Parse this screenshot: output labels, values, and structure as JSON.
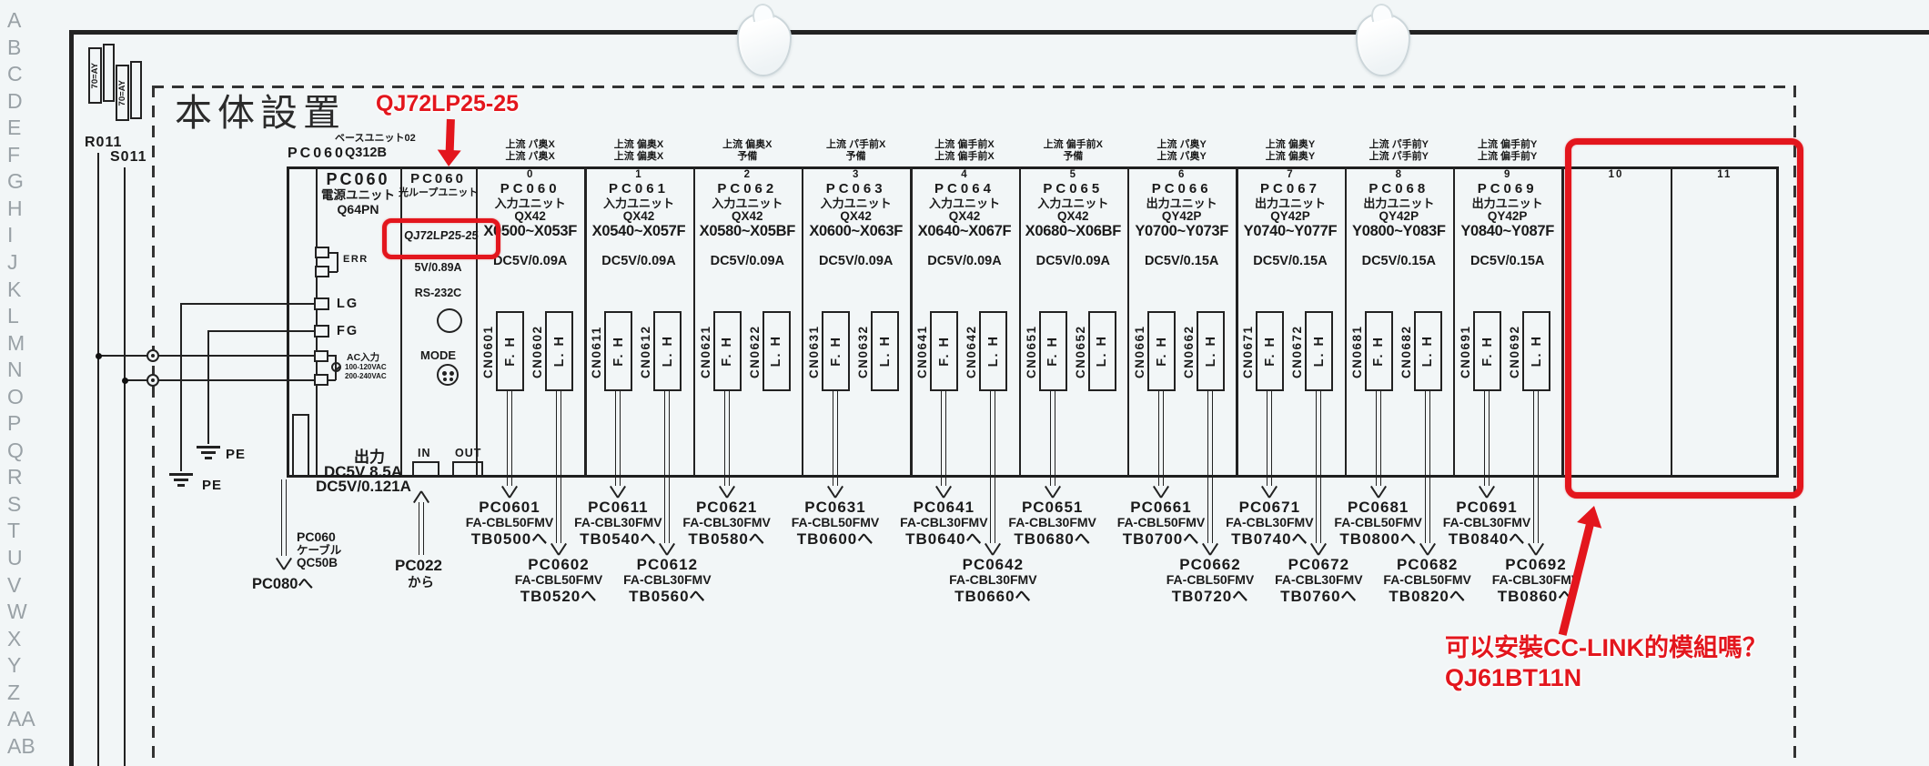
{
  "page": {
    "title": "本体設置",
    "row_letters": [
      "A",
      "B",
      "C",
      "D",
      "E",
      "F",
      "G",
      "H",
      "I",
      "J",
      "K",
      "L",
      "M",
      "N",
      "O",
      "P",
      "Q",
      "R",
      "S",
      "T",
      "U",
      "V",
      "W",
      "X",
      "Y",
      "Z",
      "AA",
      "AB"
    ],
    "stamp_label": "70=AY",
    "wire_r_label": "R011",
    "wire_s_label": "S011"
  },
  "base_unit": {
    "id": "PC060",
    "type_line": "ベースユニット02",
    "model": "Q312B"
  },
  "power_unit": {
    "id": "PC060",
    "type": "電源ユニット",
    "model": "Q64PN",
    "term_err": "ERR",
    "term_lg": "LG",
    "term_fg": "FG",
    "ac_label": "AC入力",
    "ac_v1": "100-120VAC",
    "ac_v2": "200-240VAC",
    "pe1": "PE",
    "pe2": "PE",
    "out_title": "出力",
    "out_line1": "DC5V 8.5A",
    "out_line2": "DC5V/0.121A",
    "cable_id": "PC060",
    "cable_word": "ケーブル",
    "cable_model": "QC50B",
    "cable_dest": "PC080へ"
  },
  "loop_unit": {
    "id": "PC060",
    "type": "光ループユニット",
    "model": "QJ72LP25-25",
    "power": "5V/0.89A",
    "rs232c_label": "RS-232C",
    "mode_label": "MODE",
    "in_label": "IN",
    "out_label": "OUT",
    "from_id": "PC022",
    "from_word": "から"
  },
  "slots": [
    {
      "num": "0",
      "header1": "上流 パ奥X",
      "header2": "上流 パ奥X",
      "id": "PC060",
      "type": "入力ユニット",
      "model": "QX42",
      "range": "X0500~X053F",
      "current": "DC5V/0.09A",
      "cn": [
        {
          "id": "CN0601",
          "label": "F. H",
          "cable": {
            "pc": "PC0601",
            "cbl": "FA-CBL50FMV",
            "tb": "TB0500へ"
          }
        },
        {
          "id": "CN0602",
          "label": "L. H",
          "cable": {
            "pc": "PC0602",
            "cbl": "FA-CBL50FMV",
            "tb": "TB0520へ"
          }
        }
      ]
    },
    {
      "num": "1",
      "header1": "上流 偏奥X",
      "header2": "上流 偏奥X",
      "id": "PC061",
      "type": "入力ユニット",
      "model": "QX42",
      "range": "X0540~X057F",
      "current": "DC5V/0.09A",
      "cn": [
        {
          "id": "CN0611",
          "label": "F. H",
          "cable": {
            "pc": "PC0611",
            "cbl": "FA-CBL30FMV",
            "tb": "TB0540へ"
          }
        },
        {
          "id": "CN0612",
          "label": "L. H",
          "cable": {
            "pc": "PC0612",
            "cbl": "FA-CBL30FMV",
            "tb": "TB0560へ"
          }
        }
      ]
    },
    {
      "num": "2",
      "header1": "上流 偏奥X",
      "header2": "予備",
      "id": "PC062",
      "type": "入力ユニット",
      "model": "QX42",
      "range": "X0580~X05BF",
      "current": "DC5V/0.09A",
      "cn": [
        {
          "id": "CN0621",
          "label": "F. H",
          "cable": {
            "pc": "PC0621",
            "cbl": "FA-CBL30FMV",
            "tb": "TB0580へ"
          }
        },
        {
          "id": "CN0622",
          "label": "L. H",
          "cable": null
        }
      ]
    },
    {
      "num": "3",
      "header1": "上流 パ手前X",
      "header2": "予備",
      "id": "PC063",
      "type": "入力ユニット",
      "model": "QX42",
      "range": "X0600~X063F",
      "current": "DC5V/0.09A",
      "cn": [
        {
          "id": "CN0631",
          "label": "F. H",
          "cable": {
            "pc": "PC0631",
            "cbl": "FA-CBL50FMV",
            "tb": "TB0600へ"
          }
        },
        {
          "id": "CN0632",
          "label": "L. H",
          "cable": null
        }
      ]
    },
    {
      "num": "4",
      "header1": "上流 偏手前X",
      "header2": "上流 偏手前X",
      "id": "PC064",
      "type": "入力ユニット",
      "model": "QX42",
      "range": "X0640~X067F",
      "current": "DC5V/0.09A",
      "cn": [
        {
          "id": "CN0641",
          "label": "F. H",
          "cable": {
            "pc": "PC0641",
            "cbl": "FA-CBL30FMV",
            "tb": "TB0640へ"
          }
        },
        {
          "id": "CN0642",
          "label": "L. H",
          "cable": {
            "pc": "PC0642",
            "cbl": "FA-CBL30FMV",
            "tb": "TB0660へ"
          }
        }
      ]
    },
    {
      "num": "5",
      "header1": "上流 偏手前X",
      "header2": "予備",
      "id": "PC065",
      "type": "入力ユニット",
      "model": "QX42",
      "range": "X0680~X06BF",
      "current": "DC5V/0.09A",
      "cn": [
        {
          "id": "CN0651",
          "label": "F. H",
          "cable": {
            "pc": "PC0651",
            "cbl": "FA-CBL30FMV",
            "tb": "TB0680へ"
          }
        },
        {
          "id": "CN0652",
          "label": "L. H",
          "cable": null
        }
      ]
    },
    {
      "num": "6",
      "header1": "上流 パ奥Y",
      "header2": "上流 パ奥Y",
      "id": "PC066",
      "type": "出力ユニット",
      "model": "QY42P",
      "range": "Y0700~Y073F",
      "current": "DC5V/0.15A",
      "cn": [
        {
          "id": "CN0661",
          "label": "F. H",
          "cable": {
            "pc": "PC0661",
            "cbl": "FA-CBL50FMV",
            "tb": "TB0700へ"
          }
        },
        {
          "id": "CN0662",
          "label": "L. H",
          "cable": {
            "pc": "PC0662",
            "cbl": "FA-CBL50FMV",
            "tb": "TB0720へ"
          }
        }
      ]
    },
    {
      "num": "7",
      "header1": "上流 偏奥Y",
      "header2": "上流 偏奥Y",
      "id": "PC067",
      "type": "出力ユニット",
      "model": "QY42P",
      "range": "Y0740~Y077F",
      "current": "DC5V/0.15A",
      "cn": [
        {
          "id": "CN0671",
          "label": "F. H",
          "cable": {
            "pc": "PC0671",
            "cbl": "FA-CBL30FMV",
            "tb": "TB0740へ"
          }
        },
        {
          "id": "CN0672",
          "label": "L. H",
          "cable": {
            "pc": "PC0672",
            "cbl": "FA-CBL30FMV",
            "tb": "TB0760へ"
          }
        }
      ]
    },
    {
      "num": "8",
      "header1": "上流 パ手前Y",
      "header2": "上流 パ手前Y",
      "id": "PC068",
      "type": "出力ユニット",
      "model": "QY42P",
      "range": "Y0800~Y083F",
      "current": "DC5V/0.15A",
      "cn": [
        {
          "id": "CN0681",
          "label": "F. H",
          "cable": {
            "pc": "PC0681",
            "cbl": "FA-CBL50FMV",
            "tb": "TB0800へ"
          }
        },
        {
          "id": "CN0682",
          "label": "L. H",
          "cable": {
            "pc": "PC0682",
            "cbl": "FA-CBL50FMV",
            "tb": "TB0820へ"
          }
        }
      ]
    },
    {
      "num": "9",
      "header1": "上流 偏手前Y",
      "header2": "上流 偏手前Y",
      "id": "PC069",
      "type": "出力ユニット",
      "model": "QY42P",
      "range": "Y0840~Y087F",
      "current": "DC5V/0.15A",
      "cn": [
        {
          "id": "CN0691",
          "label": "F. H",
          "cable": {
            "pc": "PC0691",
            "cbl": "FA-CBL30FMV",
            "tb": "TB0840へ"
          }
        },
        {
          "id": "CN0692",
          "label": "L. H",
          "cable": {
            "pc": "PC0692",
            "cbl": "FA-CBL30FMV",
            "tb": "TB0860へ"
          }
        }
      ]
    }
  ],
  "empty_slots": [
    "10",
    "11"
  ],
  "annotations": {
    "accent_red": "#e3161d",
    "loop_model_callout": "QJ72LP25-25",
    "question_line1": "可以安裝CC-LINK的模組嗎？",
    "question_line2": "QJ61BT11N"
  }
}
